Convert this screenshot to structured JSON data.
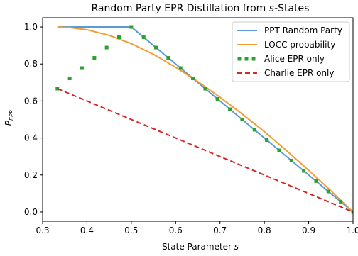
{
  "chart_data": {
    "type": "line",
    "title_prefix": "Random Party EPR Distillation from ",
    "title_var": "s",
    "title_suffix": "-States",
    "xlabel_prefix": "State Parameter ",
    "xlabel_var": "s",
    "ylabel_main": "P",
    "ylabel_sub": "EPR",
    "xlim": [
      0.3,
      1.0
    ],
    "ylim": [
      -0.05,
      1.05
    ],
    "xticks": [
      0.3,
      0.4,
      0.5,
      0.6,
      0.7,
      0.8,
      0.9,
      1.0
    ],
    "xtick_labels": [
      "0.3",
      "0.4",
      "0.5",
      "0.6",
      "0.7",
      "0.8",
      "0.9",
      "1.0"
    ],
    "yticks": [
      0.0,
      0.2,
      0.4,
      0.6,
      0.8,
      1.0
    ],
    "ytick_labels": [
      "0.0",
      "0.2",
      "0.4",
      "0.6",
      "0.8",
      "1.0"
    ],
    "grid": false,
    "legend_position": "top-right",
    "series": [
      {
        "name": "PPT Random Party",
        "style": "solid",
        "color": "#5b9bd5",
        "x": [
          0.3333,
          0.5,
          0.6,
          0.7,
          0.8,
          0.9,
          1.0
        ],
        "y": [
          1.0,
          1.0,
          0.8,
          0.6,
          0.4,
          0.2,
          0.0
        ]
      },
      {
        "name": "LOCC probability",
        "style": "solid",
        "color": "#f39c34",
        "x": [
          0.3333,
          0.36,
          0.4,
          0.45,
          0.5,
          0.55,
          0.6,
          0.65,
          0.7,
          0.75,
          0.8,
          0.85,
          0.9,
          0.95,
          1.0
        ],
        "y": [
          1.0,
          0.997,
          0.985,
          0.955,
          0.91,
          0.852,
          0.782,
          0.705,
          0.62,
          0.53,
          0.435,
          0.332,
          0.225,
          0.115,
          0.0
        ]
      },
      {
        "name": "Alice EPR only",
        "style": "dotted",
        "color": "#2ca02c",
        "x": [
          0.3333,
          0.3611,
          0.3889,
          0.4167,
          0.4444,
          0.4722,
          0.5,
          0.5278,
          0.5556,
          0.5833,
          0.6111,
          0.6389,
          0.6667,
          0.6944,
          0.7222,
          0.75,
          0.7778,
          0.8056,
          0.8333,
          0.8611,
          0.8889,
          0.9167,
          0.9444,
          0.9722,
          1.0
        ],
        "y": [
          0.6667,
          0.7222,
          0.7778,
          0.8333,
          0.8889,
          0.9444,
          1.0,
          0.9444,
          0.8889,
          0.8333,
          0.7778,
          0.7222,
          0.6667,
          0.6111,
          0.5556,
          0.5,
          0.4444,
          0.3889,
          0.3333,
          0.2778,
          0.2222,
          0.1667,
          0.1111,
          0.0556,
          0.0
        ]
      },
      {
        "name": "Charlie EPR only",
        "style": "dashed",
        "color": "#d62728",
        "x": [
          0.3333,
          1.0
        ],
        "y": [
          0.6667,
          0.0
        ]
      }
    ]
  }
}
